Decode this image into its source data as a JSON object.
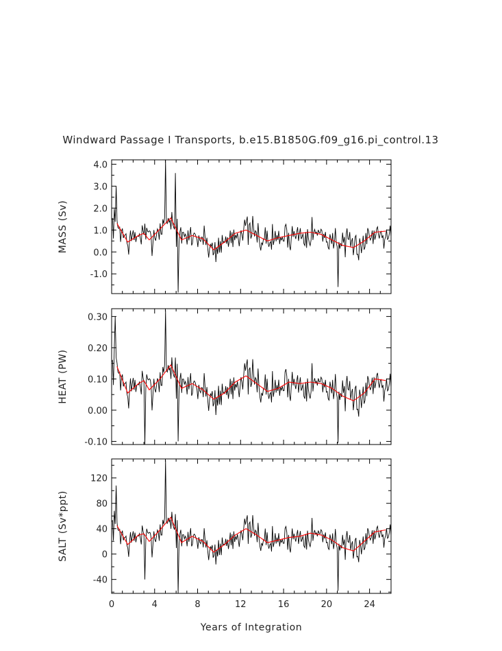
{
  "chart_data": {
    "type": "line",
    "title": "Windward Passage I Transports, b.e15.B1850G.f09_g16.pi_control.13",
    "xlabel": "Years of Integration",
    "xlim": [
      0,
      26
    ],
    "x_ticks": [
      0,
      4,
      8,
      12,
      16,
      20,
      24
    ],
    "grid": false,
    "legend": "none",
    "colors": {
      "raw": "#000000",
      "smoothed": "#ff0000"
    },
    "panels": [
      {
        "id": "mass",
        "ylabel": "MASS (Sv)",
        "ylim": [
          -1.9,
          4.2
        ],
        "y_ticks": [
          -1.0,
          0.0,
          1.0,
          2.0,
          3.0,
          4.0
        ],
        "y_tick_labels": [
          "-1.0",
          "0.0",
          "1.0",
          "2.0",
          "3.0",
          "4.0"
        ],
        "smoothed": {
          "x": [
            0.5,
            1.5,
            2.5,
            3.0,
            3.5,
            4.5,
            5.5,
            6.5,
            7.5,
            8.5,
            9.5,
            10.5,
            11.5,
            12.5,
            13.5,
            14.5,
            15.5,
            16.5,
            17.5,
            18.5,
            19.5,
            20.5,
            21.5,
            22.5,
            23.5,
            24.5,
            25.5
          ],
          "y": [
            1.3,
            0.45,
            0.75,
            0.85,
            0.55,
            1.05,
            1.55,
            0.55,
            0.75,
            0.6,
            0.1,
            0.45,
            0.85,
            1.0,
            0.75,
            0.5,
            0.65,
            0.75,
            0.85,
            0.9,
            0.8,
            0.55,
            0.3,
            0.2,
            0.5,
            0.9,
            0.95
          ]
        },
        "spikes": [
          {
            "x": 5.0,
            "y": 4.2
          },
          {
            "x": 5.9,
            "y": 3.6
          },
          {
            "x": 6.2,
            "y": -1.85
          },
          {
            "x": 0.4,
            "y": 3.0
          },
          {
            "x": 21.1,
            "y": -1.6
          }
        ],
        "raw_amplitude": 0.75
      },
      {
        "id": "heat",
        "ylabel": "HEAT (PW)",
        "ylim": [
          -0.11,
          0.325
        ],
        "y_ticks": [
          -0.1,
          0.0,
          0.1,
          0.2,
          0.3
        ],
        "y_tick_labels": [
          "-0.10",
          "0.00",
          "0.10",
          "0.20",
          "0.30"
        ],
        "smoothed": {
          "x": [
            0.5,
            1.5,
            2.5,
            3.0,
            3.5,
            4.5,
            5.5,
            6.5,
            7.5,
            8.5,
            9.5,
            10.5,
            11.5,
            12.5,
            13.5,
            14.5,
            15.5,
            16.5,
            17.5,
            18.5,
            19.5,
            20.5,
            21.5,
            22.5,
            23.5,
            24.5,
            25.5
          ],
          "y": [
            0.14,
            0.055,
            0.085,
            0.095,
            0.065,
            0.1,
            0.145,
            0.07,
            0.085,
            0.065,
            0.035,
            0.055,
            0.09,
            0.11,
            0.085,
            0.06,
            0.07,
            0.09,
            0.085,
            0.09,
            0.085,
            0.07,
            0.045,
            0.03,
            0.055,
            0.1,
            0.095
          ]
        },
        "spikes": [
          {
            "x": 5.0,
            "y": 0.32
          },
          {
            "x": 0.3,
            "y": 0.3
          },
          {
            "x": 6.2,
            "y": -0.1
          },
          {
            "x": 3.1,
            "y": -0.11
          },
          {
            "x": 21.1,
            "y": -0.105
          }
        ],
        "raw_amplitude": 0.065
      },
      {
        "id": "salt",
        "ylabel": "SALT (Sv*ppt)",
        "ylim": [
          -62,
          150
        ],
        "y_ticks": [
          -40,
          0,
          40,
          80,
          120
        ],
        "y_tick_labels": [
          "-40",
          "0",
          "40",
          "80",
          "120"
        ],
        "smoothed": {
          "x": [
            0.5,
            1.5,
            2.5,
            3.0,
            3.5,
            4.5,
            5.5,
            6.5,
            7.5,
            8.5,
            9.5,
            10.5,
            11.5,
            12.5,
            13.5,
            14.5,
            15.5,
            16.5,
            17.5,
            18.5,
            19.5,
            20.5,
            21.5,
            22.5,
            23.5,
            24.5,
            25.5
          ],
          "y": [
            45,
            15,
            30,
            32,
            20,
            38,
            58,
            18,
            28,
            20,
            3,
            15,
            30,
            40,
            30,
            18,
            22,
            26,
            28,
            33,
            30,
            22,
            10,
            5,
            20,
            35,
            38
          ]
        },
        "spikes": [
          {
            "x": 5.0,
            "y": 148
          },
          {
            "x": 0.4,
            "y": 108
          },
          {
            "x": 6.2,
            "y": -62
          },
          {
            "x": 3.1,
            "y": -40
          },
          {
            "x": 21.1,
            "y": -58
          }
        ],
        "raw_amplitude": 26
      }
    ]
  }
}
